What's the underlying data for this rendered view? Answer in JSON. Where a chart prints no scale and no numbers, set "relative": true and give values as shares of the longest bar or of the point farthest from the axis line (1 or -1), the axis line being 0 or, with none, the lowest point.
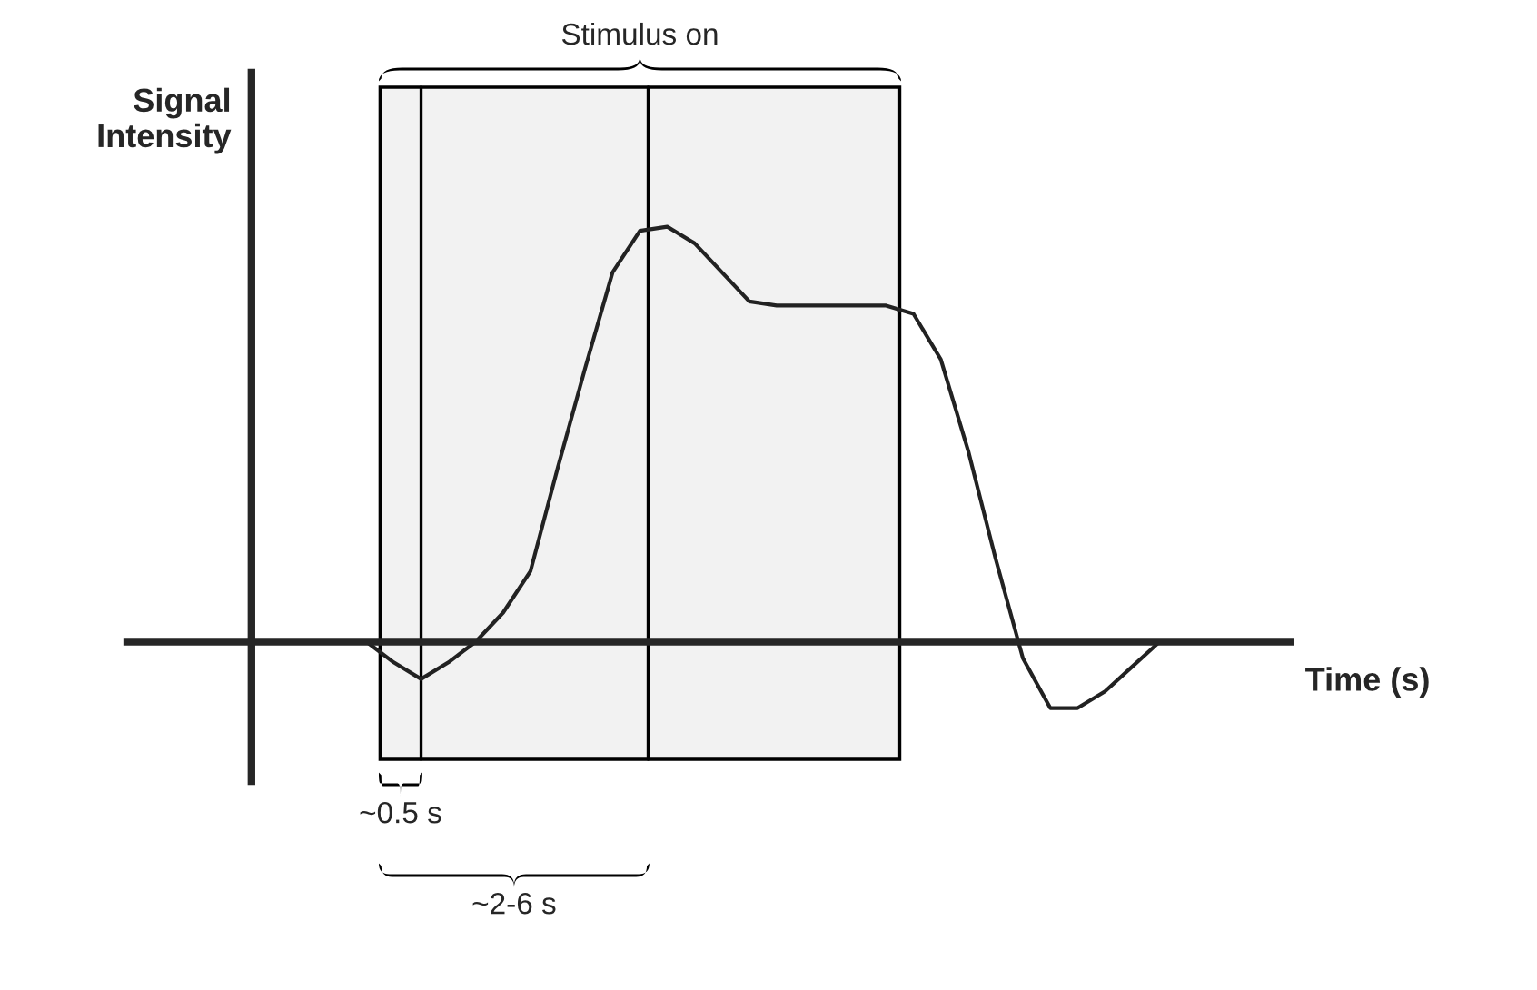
{
  "chart_data": {
    "type": "line",
    "relative": true,
    "xlabel": "Time (s)",
    "ylabel": "Signal\nIntensity",
    "marker": "none",
    "line_style": "solid",
    "categories": [
      null,
      null,
      null,
      null,
      null,
      null,
      null,
      null,
      null,
      null,
      null,
      null,
      null,
      null,
      null,
      null,
      null,
      null,
      null,
      null,
      null,
      null,
      null,
      null,
      null,
      null,
      null,
      null,
      null,
      null,
      null,
      null,
      null,
      null
    ],
    "series": [
      {
        "color": "#222222",
        "values": [
          0,
          0,
          0,
          0,
          0,
          -0.05,
          -0.09,
          -0.05,
          0,
          0.07,
          0.17,
          0.42,
          0.66,
          0.89,
          0.99,
          1.0,
          0.96,
          0.89,
          0.82,
          0.81,
          0.81,
          0.81,
          0.81,
          0.81,
          0.79,
          0.68,
          0.46,
          0.2,
          -0.04,
          -0.16,
          -0.16,
          -0.12,
          -0.06,
          0
        ]
      }
    ],
    "annotations": [
      "Stimulus on",
      "~0.5 s",
      "~2-6 s"
    ]
  }
}
